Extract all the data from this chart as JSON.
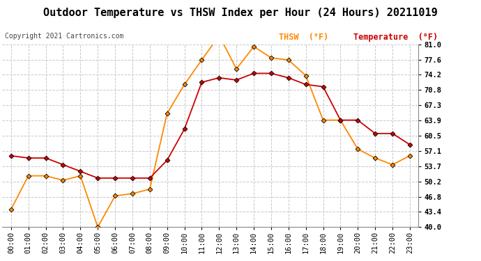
{
  "title": "Outdoor Temperature vs THSW Index per Hour (24 Hours) 20211019",
  "copyright": "Copyright 2021 Cartronics.com",
  "hours": [
    "00:00",
    "01:00",
    "02:00",
    "03:00",
    "04:00",
    "05:00",
    "06:00",
    "07:00",
    "08:00",
    "09:00",
    "10:00",
    "11:00",
    "12:00",
    "13:00",
    "14:00",
    "15:00",
    "16:00",
    "17:00",
    "18:00",
    "19:00",
    "20:00",
    "21:00",
    "22:00",
    "23:00"
  ],
  "temperature": [
    56.0,
    55.5,
    55.5,
    54.0,
    52.5,
    51.0,
    51.0,
    51.0,
    51.0,
    55.0,
    62.0,
    72.5,
    73.5,
    73.0,
    74.5,
    74.5,
    73.5,
    72.0,
    71.5,
    64.0,
    64.0,
    61.0,
    61.0,
    58.5
  ],
  "thsw": [
    44.0,
    51.5,
    51.5,
    50.5,
    51.5,
    40.0,
    47.0,
    47.5,
    48.5,
    65.5,
    72.0,
    77.5,
    83.0,
    75.5,
    80.5,
    78.0,
    77.5,
    74.0,
    64.0,
    64.0,
    57.5,
    55.5,
    54.0,
    56.0
  ],
  "temp_color": "#cc0000",
  "thsw_color": "#ff8800",
  "marker_color": "#000000",
  "background_color": "#ffffff",
  "grid_color": "#c8c8c8",
  "yticks": [
    40.0,
    43.4,
    46.8,
    50.2,
    53.7,
    57.1,
    60.5,
    63.9,
    67.3,
    70.8,
    74.2,
    77.6,
    81.0
  ],
  "ylim": [
    40.0,
    81.0
  ],
  "legend_thsw": "THSW  (°F)",
  "legend_temp": "Temperature  (°F)",
  "title_fontsize": 11,
  "tick_fontsize": 7.5,
  "copyright_fontsize": 7
}
